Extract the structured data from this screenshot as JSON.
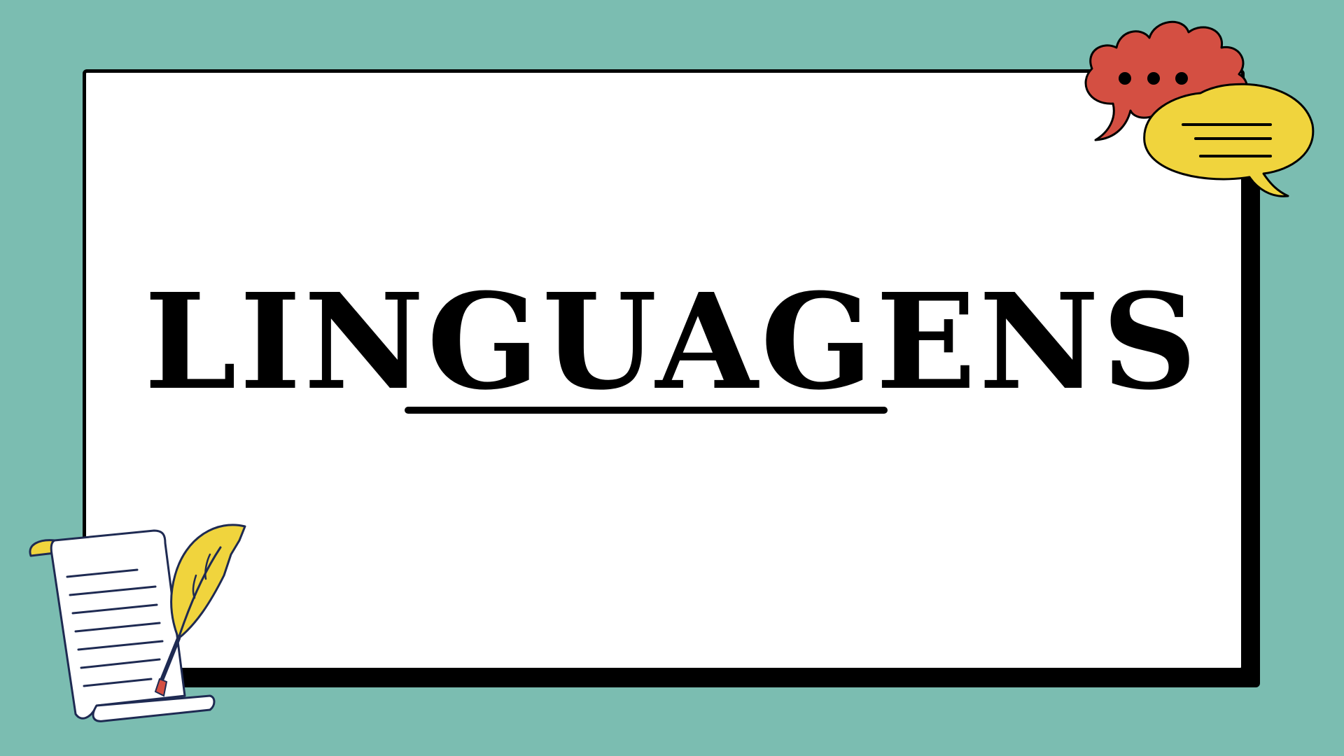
{
  "slide": {
    "title": "LINGUAGENS"
  },
  "colors": {
    "background": "#7bbdb1",
    "card": "#ffffff",
    "ink": "#000000",
    "bubble_red": "#d44f42",
    "bubble_yellow": "#f0d43d",
    "feather_yellow": "#f0d43d",
    "scroll_outline": "#1e2a52",
    "pen_nib": "#d44f42"
  },
  "icons": [
    "speech-bubbles-icon",
    "scroll-icon",
    "quill-pen-icon"
  ]
}
